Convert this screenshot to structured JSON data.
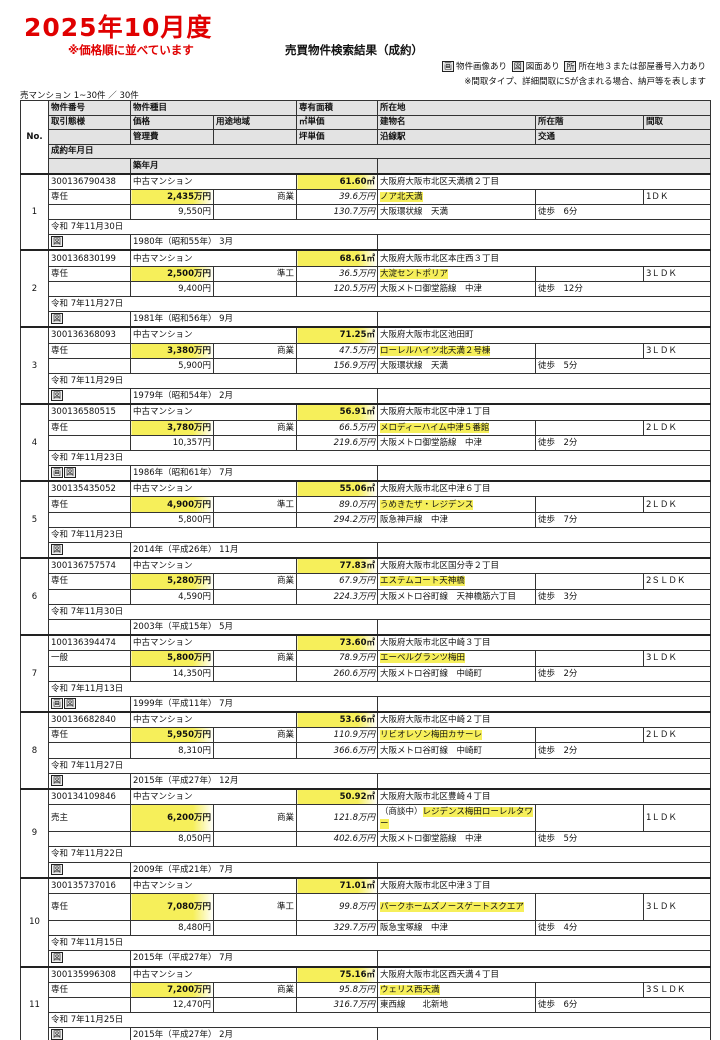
{
  "header": {
    "big_title": "2025年10月度",
    "sub_note": "※価格順に並べています",
    "doc_title": "売買物件検索結果（成約）",
    "legend": {
      "img_icon": "画",
      "img_label": "物件画像あり",
      "plan_icon": "図",
      "plan_label": "図面あり",
      "loc_icon": "所",
      "loc_label": "所在地３または部屋番号入力あり",
      "note": "※間取タイプ、詳細間取にSが含まれる場合、納戸等を表します"
    },
    "count": "売マンション 1~30件 ／ 30件"
  },
  "columns": {
    "no": "No.",
    "property_no": "物件番号",
    "type": "物件種目",
    "area": "専有面積",
    "address": "所在地",
    "transaction": "取引態様",
    "price": "価格",
    "zoning": "用途地域",
    "sqm_price": "㎡単価",
    "building": "建物名",
    "floor": "所在階",
    "layout": "間取",
    "mgmt_fee": "管理費",
    "tsubo_price": "坪単価",
    "station": "沿線駅",
    "access": "交通",
    "contract_date": "成約年月日",
    "built": "築年月"
  },
  "highlight_color": "#f6ef5a",
  "records": [
    {
      "no": "1",
      "id": "300136790438",
      "type": "中古マンション",
      "area": "61.60㎡",
      "address": "大阪府大阪市北区天満橋２丁目",
      "trans": "専任",
      "price": "2,435万円",
      "zoning": "商業",
      "sqm": "39.6万円",
      "building": "ノア北天満",
      "floor": "",
      "layout": "1ＤＫ",
      "fee": "9,550円",
      "tsubo": "130.7万円",
      "station": "大阪環状線　天満",
      "access": "徒歩　6分",
      "date": "令和 7年11月30日",
      "icons": [
        "図"
      ],
      "built": "1980年（昭和55年） 3月"
    },
    {
      "no": "2",
      "id": "300136830199",
      "type": "中古マンション",
      "area": "68.61㎡",
      "address": "大阪府大阪市北区本庄西３丁目",
      "trans": "専任",
      "price": "2,500万円",
      "zoning": "準工",
      "sqm": "36.5万円",
      "building": "大淀セントポリア",
      "floor": "",
      "layout": "3ＬＤＫ",
      "fee": "9,400円",
      "tsubo": "120.5万円",
      "station": "大阪メトロ御堂筋線　中津",
      "access": "徒歩　12分",
      "date": "令和 7年11月27日",
      "icons": [
        "図"
      ],
      "built": "1981年（昭和56年） 9月"
    },
    {
      "no": "3",
      "id": "300136368093",
      "type": "中古マンション",
      "area": "71.25㎡",
      "address": "大阪府大阪市北区池田町",
      "trans": "専任",
      "price": "3,380万円",
      "zoning": "商業",
      "sqm": "47.5万円",
      "building": "ローレルハイツ北天満２号棟",
      "floor": "",
      "layout": "3ＬＤＫ",
      "fee": "5,900円",
      "tsubo": "156.9万円",
      "station": "大阪環状線　天満",
      "access": "徒歩　5分",
      "date": "令和 7年11月29日",
      "icons": [
        "図"
      ],
      "built": "1979年（昭和54年） 2月"
    },
    {
      "no": "4",
      "id": "300136580515",
      "type": "中古マンション",
      "area": "56.91㎡",
      "address": "大阪府大阪市北区中津１丁目",
      "trans": "専任",
      "price": "3,780万円",
      "zoning": "商業",
      "sqm": "66.5万円",
      "building": "メロディーハイム中津５番館",
      "floor": "",
      "layout": "2ＬＤＫ",
      "fee": "10,357円",
      "tsubo": "219.6万円",
      "station": "大阪メトロ御堂筋線　中津",
      "access": "徒歩　2分",
      "date": "令和 7年11月23日",
      "icons": [
        "画",
        "図"
      ],
      "built": "1986年（昭和61年） 7月"
    },
    {
      "no": "5",
      "id": "300135435052",
      "type": "中古マンション",
      "area": "55.06㎡",
      "address": "大阪府大阪市北区中津６丁目",
      "trans": "専任",
      "price": "4,900万円",
      "zoning": "準工",
      "sqm": "89.0万円",
      "building": "うめきたザ・レジデンス",
      "floor": "",
      "layout": "2ＬＤＫ",
      "fee": "5,800円",
      "tsubo": "294.2万円",
      "station": "阪急神戸線　中津",
      "access": "徒歩　7分",
      "date": "令和 7年11月23日",
      "icons": [
        "図"
      ],
      "built": "2014年（平成26年） 11月"
    },
    {
      "no": "6",
      "id": "300136757574",
      "type": "中古マンション",
      "area": "77.83㎡",
      "address": "大阪府大阪市北区国分寺２丁目",
      "trans": "専任",
      "price": "5,280万円",
      "zoning": "商業",
      "sqm": "67.9万円",
      "building": "エステムコート天神橋",
      "floor": "",
      "layout": "2ＳＬＤＫ",
      "fee": "4,590円",
      "tsubo": "224.3万円",
      "station": "大阪メトロ谷町線　天神橋筋六丁目",
      "access": "徒歩　3分",
      "date": "令和 7年11月30日",
      "icons": [],
      "built": "2003年（平成15年） 5月"
    },
    {
      "no": "7",
      "id": "100136394474",
      "type": "中古マンション",
      "area": "73.60㎡",
      "address": "大阪府大阪市北区中崎３丁目",
      "trans": "一般",
      "price": "5,800万円",
      "zoning": "商業",
      "sqm": "78.9万円",
      "building": "エーベルグランツ梅田",
      "floor": "",
      "layout": "3ＬＤＫ",
      "fee": "14,350円",
      "tsubo": "260.6万円",
      "station": "大阪メトロ谷町線　中崎町",
      "access": "徒歩　2分",
      "date": "令和 7年11月13日",
      "icons": [
        "画",
        "図"
      ],
      "built": "1999年（平成11年） 7月"
    },
    {
      "no": "8",
      "id": "300136682840",
      "type": "中古マンション",
      "area": "53.66㎡",
      "address": "大阪府大阪市北区中崎２丁目",
      "trans": "専任",
      "price": "5,950万円",
      "zoning": "商業",
      "sqm": "110.9万円",
      "building": "リビオレゾン梅田カサーレ",
      "floor": "",
      "layout": "2ＬＤＫ",
      "fee": "8,310円",
      "tsubo": "366.6万円",
      "station": "大阪メトロ谷町線　中崎町",
      "access": "徒歩　2分",
      "date": "令和 7年11月27日",
      "icons": [
        "図"
      ],
      "built": "2015年（平成27年） 12月"
    },
    {
      "no": "9",
      "id": "300134109846",
      "type": "中古マンション",
      "area": "50.92㎡",
      "address": "大阪府大阪市北区豊崎４丁目",
      "trans": "売主",
      "price": "6,200万円",
      "zoning": "商業",
      "sqm": "121.8万円",
      "building_prefix": "（商談中）",
      "building": "レジデンス梅田ローレルタワー",
      "floor": "",
      "layout": "1ＬＤＫ",
      "fee": "8,050円",
      "tsubo": "402.6万円",
      "station": "大阪メトロ御堂筋線　中津",
      "access": "徒歩　5分",
      "date": "令和 7年11月22日",
      "icons": [
        "図"
      ],
      "built": "2009年（平成21年） 7月",
      "tall": true
    },
    {
      "no": "10",
      "id": "300135737016",
      "type": "中古マンション",
      "area": "71.01㎡",
      "address": "大阪府大阪市北区中津３丁目",
      "trans": "専任",
      "price": "7,080万円",
      "zoning": "準工",
      "sqm": "99.8万円",
      "building": "パークホームズノースゲートスクエア",
      "floor": "",
      "layout": "3ＬＤＫ",
      "fee": "8,480円",
      "tsubo": "329.7万円",
      "station": "阪急宝塚線　中津",
      "access": "徒歩　4分",
      "date": "令和 7年11月15日",
      "icons": [
        "図"
      ],
      "built": "2015年（平成27年） 7月",
      "tall": true
    },
    {
      "no": "11",
      "id": "300135996308",
      "type": "中古マンション",
      "area": "75.16㎡",
      "address": "大阪府大阪市北区西天満４丁目",
      "trans": "専任",
      "price": "7,200万円",
      "zoning": "商業",
      "sqm": "95.8万円",
      "building": "ウェリス西天満",
      "floor": "",
      "layout": "3ＳＬＤＫ",
      "fee": "12,470円",
      "tsubo": "316.7万円",
      "station": "東西線　　北新地",
      "access": "徒歩　6分",
      "date": "令和 7年11月25日",
      "icons": [
        "図"
      ],
      "built": "2015年（平成27年） 2月"
    }
  ]
}
